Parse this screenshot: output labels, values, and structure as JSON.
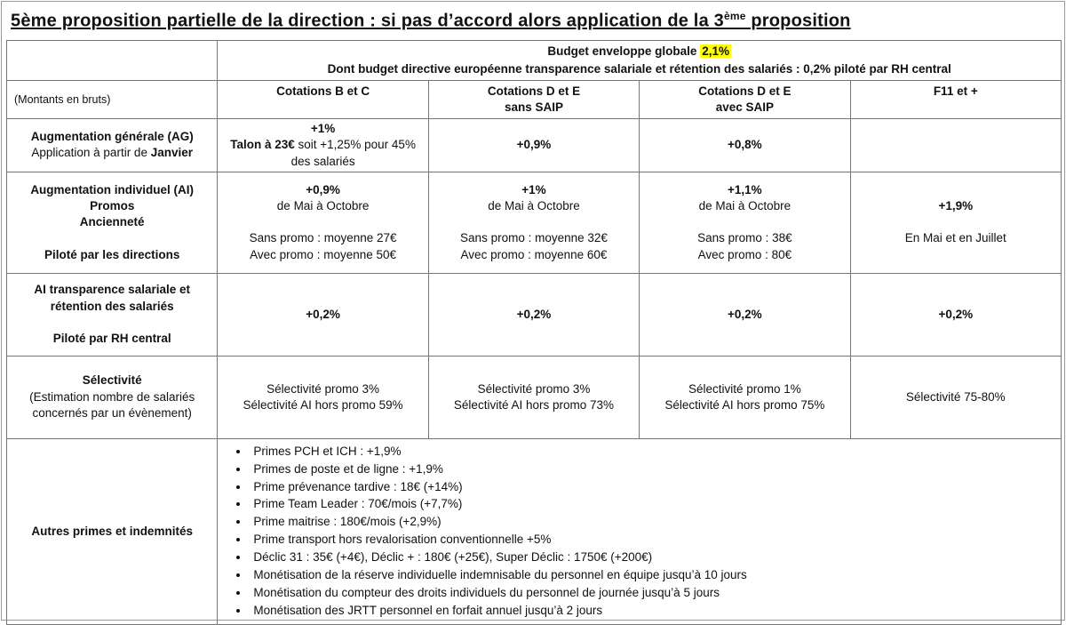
{
  "page": {
    "title_pre": "5ème proposition partielle de la direction : si pas d’accord alors application de la 3",
    "title_sup": "ème",
    "title_post": " proposition"
  },
  "budget": {
    "line1_prefix": "Budget enveloppe globale ",
    "line1_highlight": "2,1%",
    "highlight_color": "#FFFF00",
    "line2": "Dont budget directive européenne transparence salariale et rétention des salariés : 0,2% piloté par RH central"
  },
  "table": {
    "corner_label": "(Montants en bruts)",
    "column_headers": [
      {
        "line1": "Cotations B et C",
        "line2": ""
      },
      {
        "line1": "Cotations D et E",
        "line2": "sans SAIP"
      },
      {
        "line1": "Cotations D et E",
        "line2": "avec SAIP"
      },
      {
        "line1": "F11 et +",
        "line2": ""
      }
    ],
    "rows": [
      {
        "label": {
          "lines": [
            [
              {
                "t": "Augmentation générale (AG)",
                "b": true
              }
            ],
            [
              {
                "t": "Application à partir de ",
                "b": false
              },
              {
                "t": "Janvier",
                "b": true
              }
            ]
          ]
        },
        "cells": [
          {
            "lines": [
              [
                {
                  "t": "+1%",
                  "b": true
                }
              ],
              [
                {
                  "t": "Talon à 23€",
                  "b": true
                },
                {
                  "t": " soit +1,25% pour 45% des salariés",
                  "b": false
                }
              ]
            ]
          },
          {
            "lines": [
              [
                {
                  "t": "+0,9%",
                  "b": true
                }
              ]
            ]
          },
          {
            "lines": [
              [
                {
                  "t": "+0,8%",
                  "b": true
                }
              ]
            ]
          },
          {
            "lines": []
          }
        ]
      },
      {
        "label": {
          "lines": [
            [
              {
                "t": "Augmentation individuel (AI)",
                "b": true
              }
            ],
            [
              {
                "t": "Promos",
                "b": true
              }
            ],
            [
              {
                "t": "Ancienneté",
                "b": true
              }
            ],
            [],
            [
              {
                "t": "Piloté par les directions",
                "b": true
              }
            ]
          ]
        },
        "cells": [
          {
            "lines": [
              [
                {
                  "t": "+0,9%",
                  "b": true
                }
              ],
              [
                {
                  "t": "de Mai à Octobre",
                  "b": false
                }
              ],
              [],
              [
                {
                  "t": "Sans promo : moyenne 27€",
                  "b": false
                }
              ],
              [
                {
                  "t": "Avec promo : moyenne 50€",
                  "b": false
                }
              ]
            ]
          },
          {
            "lines": [
              [
                {
                  "t": "+1%",
                  "b": true
                }
              ],
              [
                {
                  "t": "de Mai à Octobre",
                  "b": false
                }
              ],
              [],
              [
                {
                  "t": "Sans promo : moyenne 32€",
                  "b": false
                }
              ],
              [
                {
                  "t": "Avec promo : moyenne 60€",
                  "b": false
                }
              ]
            ]
          },
          {
            "lines": [
              [
                {
                  "t": "+1,1%",
                  "b": true
                }
              ],
              [
                {
                  "t": "de Mai à Octobre",
                  "b": false
                }
              ],
              [],
              [
                {
                  "t": "Sans promo : 38€",
                  "b": false
                }
              ],
              [
                {
                  "t": "Avec promo : 80€",
                  "b": false
                }
              ]
            ]
          },
          {
            "lines": [
              [
                {
                  "t": "+1,9%",
                  "b": true
                }
              ],
              [],
              [
                {
                  "t": "En Mai et en Juillet",
                  "b": false
                }
              ]
            ]
          }
        ]
      },
      {
        "label": {
          "lines": [
            [
              {
                "t": "AI transparence salariale et rétention des salariés",
                "b": true
              }
            ],
            [],
            [
              {
                "t": "Piloté par RH central",
                "b": true
              }
            ]
          ]
        },
        "cells": [
          {
            "lines": [
              [
                {
                  "t": "+0,2%",
                  "b": true
                }
              ]
            ]
          },
          {
            "lines": [
              [
                {
                  "t": "+0,2%",
                  "b": true
                }
              ]
            ]
          },
          {
            "lines": [
              [
                {
                  "t": "+0,2%",
                  "b": true
                }
              ]
            ]
          },
          {
            "lines": [
              [
                {
                  "t": "+0,2%",
                  "b": true
                }
              ]
            ]
          }
        ]
      },
      {
        "label": {
          "lines": [
            [
              {
                "t": "Sélectivité",
                "b": true
              }
            ],
            [
              {
                "t": "(Estimation nombre de salariés concernés par un évènement)",
                "b": false
              }
            ]
          ]
        },
        "cells": [
          {
            "lines": [
              [
                {
                  "t": "Sélectivité promo 3%",
                  "b": false
                }
              ],
              [
                {
                  "t": "Sélectivité AI hors promo 59%",
                  "b": false
                }
              ]
            ]
          },
          {
            "lines": [
              [
                {
                  "t": "Sélectivité promo 3%",
                  "b": false
                }
              ],
              [
                {
                  "t": "Sélectivité AI hors promo 73%",
                  "b": false
                }
              ]
            ]
          },
          {
            "lines": [
              [
                {
                  "t": "Sélectivité promo 1%",
                  "b": false
                }
              ],
              [
                {
                  "t": "Sélectivité AI hors promo 75%",
                  "b": false
                }
              ]
            ]
          },
          {
            "lines": [
              [
                {
                  "t": "Sélectivité 75-80%",
                  "b": false
                }
              ]
            ]
          }
        ]
      },
      {
        "label": {
          "lines": [
            [
              {
                "t": "Autres primes et indemnités",
                "b": true
              }
            ]
          ]
        },
        "cells": [
          {
            "bullets": [
              "Primes PCH et ICH : +1,9%",
              "Primes de poste et de ligne : +1,9%",
              "Prime prévenance tardive : 18€ (+14%)",
              "Prime Team Leader : 70€/mois (+7,7%)",
              "Prime maitrise : 180€/mois (+2,9%)",
              "Prime transport hors revalorisation conventionnelle +5%",
              "Déclic 31 : 35€ (+4€), Déclic + : 180€ (+25€), Super Déclic : 1750€ (+200€)",
              "Monétisation de la réserve individuelle indemnisable du personnel en équipe jusqu’à 10 jours",
              "Monétisation du compteur des droits individuels du personnel de journée jusqu’à 5 jours",
              "Monétisation des JRTT personnel en forfait annuel jusqu’à 2 jours"
            ]
          }
        ]
      }
    ]
  }
}
